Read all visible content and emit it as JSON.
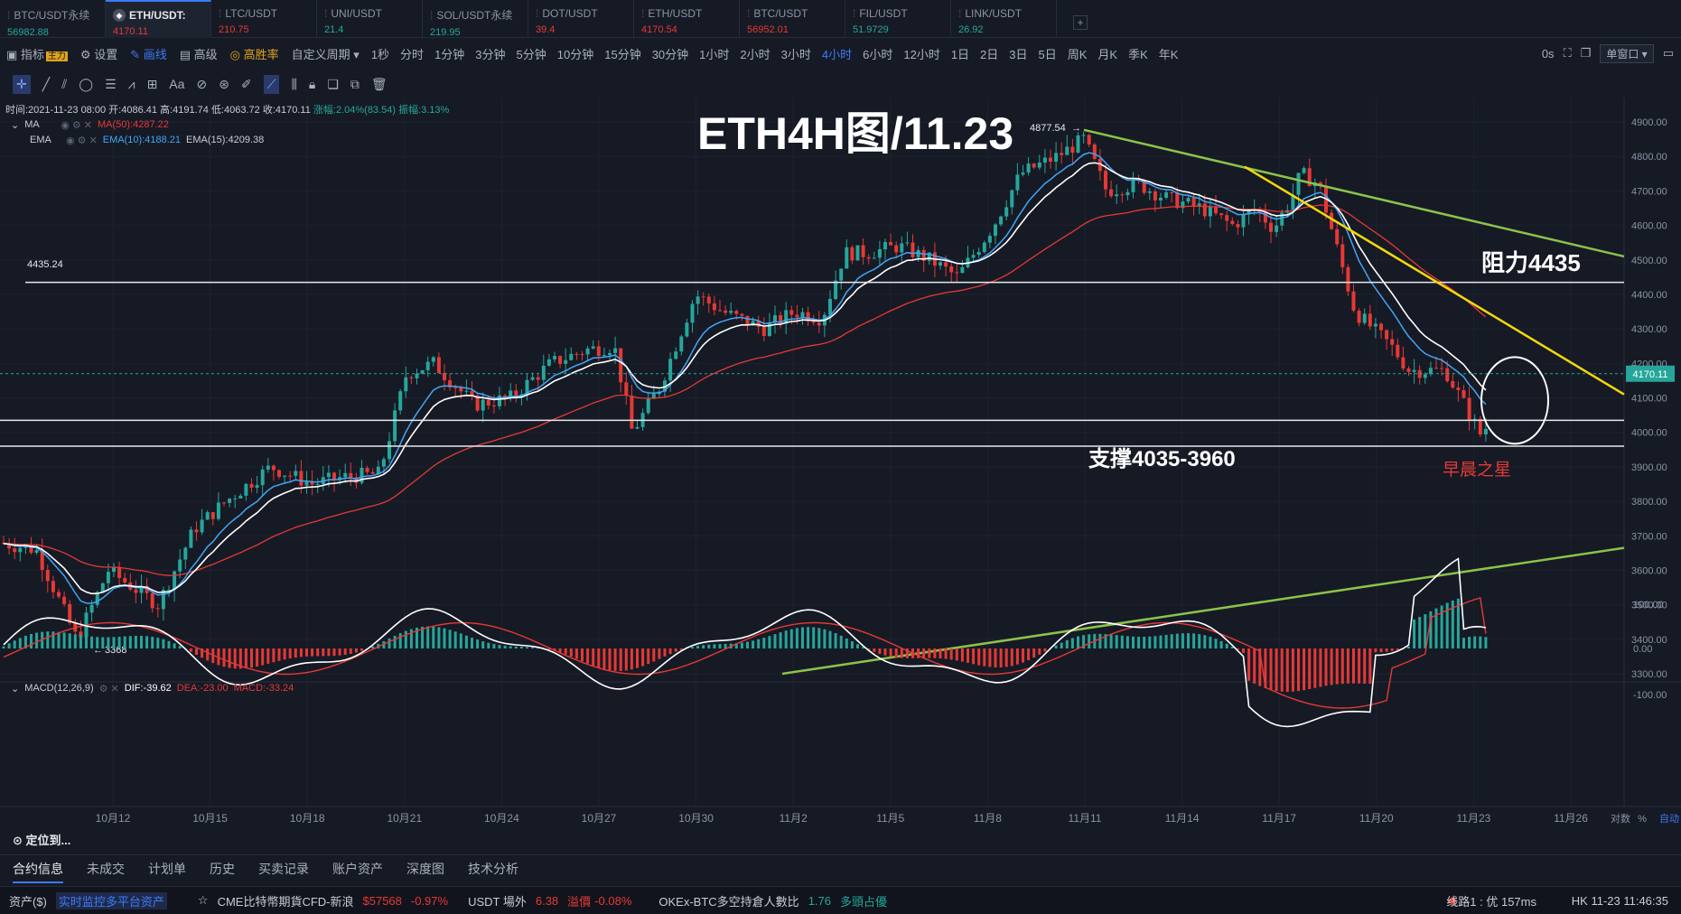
{
  "tabs": [
    {
      "name": "BTC/USDT永续",
      "price": "56982.88",
      "color": "#26a69a"
    },
    {
      "name": "ETH/USDT:",
      "price": "4170.11",
      "color": "#e53935",
      "active": true
    },
    {
      "name": "LTC/USDT",
      "price": "210.75",
      "color": "#e53935"
    },
    {
      "name": "UNI/USDT",
      "price": "21.4",
      "color": "#26a69a"
    },
    {
      "name": "SOL/USDT永续",
      "price": "219.95",
      "color": "#26a69a"
    },
    {
      "name": "DOT/USDT",
      "price": "39.4",
      "color": "#e53935"
    },
    {
      "name": "ETH/USDT",
      "price": "4170.54",
      "color": "#e53935"
    },
    {
      "name": "BTC/USDT",
      "price": "56952.01",
      "color": "#e53935"
    },
    {
      "name": "FIL/USDT",
      "price": "51.9729",
      "color": "#26a69a"
    },
    {
      "name": "LINK/USDT",
      "price": "26.92",
      "color": "#26a69a"
    }
  ],
  "toolbar": {
    "indicator": "指标",
    "main_tag": "主力",
    "settings": "设置",
    "draw": "画线",
    "advanced": "高级",
    "win_rate": "高胜率",
    "custom_period": "自定义周期",
    "periods": [
      "1秒",
      "分时",
      "1分钟",
      "3分钟",
      "5分钟",
      "10分钟",
      "15分钟",
      "30分钟",
      "1小时",
      "2小时",
      "3小时",
      "4小时",
      "6小时",
      "12小时",
      "1日",
      "2日",
      "3日",
      "5日",
      "周K",
      "月K",
      "季K",
      "年K"
    ],
    "active_period": "4小时",
    "latency": "0s",
    "window_mode": "单窗口"
  },
  "info_line": {
    "time": "时间:2021-11-23 08:00",
    "open": "开:4086.41",
    "high": "高:4191.74",
    "low": "低:4063.72",
    "close": "收:4170.11",
    "change": "涨幅:2.04%(83.54)",
    "amp": "振幅:3.13%"
  },
  "indicators": {
    "ma_name": "MA",
    "ma50": "MA(50):4287.22",
    "ema_name": "EMA",
    "ema10": "EMA(10):4188.21",
    "ema15": "EMA(15):4209.38",
    "macd_name": "MACD(12,26,9)",
    "dif": "DIF:-39.62",
    "dea": "DEA:-23.00",
    "macd": "MACD:-33.24"
  },
  "annotations": {
    "title": "ETH4H图/11.23",
    "resistance": "阻力4435",
    "support": "支撑4035-3960",
    "pattern": "早晨之星",
    "level_label": "4435.24",
    "high_label": "4877.54",
    "low_label": "3368",
    "last_price": "4170.11"
  },
  "price_axis": [
    "4900.00",
    "4800.00",
    "4700.00",
    "4600.00",
    "4500.00",
    "4400.00",
    "4300.00",
    "4200.00",
    "4100.00",
    "4000.00",
    "3900.00",
    "3800.00",
    "3700.00",
    "3600.00",
    "3500.00",
    "3400.00",
    "3300.00"
  ],
  "macd_axis": [
    "100.00",
    "0.00",
    "-100.00"
  ],
  "date_axis": [
    "10月12",
    "10月15",
    "10月18",
    "10月21",
    "10月24",
    "10月27",
    "10月30",
    "11月2",
    "11月5",
    "11月8",
    "11月11",
    "11月14",
    "11月17",
    "11月20",
    "11月23",
    "11月26"
  ],
  "axis_extra": {
    "log": "对数",
    "pct": "%",
    "auto": "自动"
  },
  "locate": "定位到...",
  "bottom_tabs": [
    "合约信息",
    "未成交",
    "计划单",
    "历史",
    "买卖记录",
    "账户资产",
    "深度图",
    "技术分析"
  ],
  "ticker": {
    "assets": "资产($)",
    "monitor": "实时监控多平台资产",
    "cme": "CME比特幣期貨CFD-新浪",
    "cme_price": "$57568",
    "cme_chg": "-0.97%",
    "usdt": "USDT 場外",
    "usdt_val": "6.38",
    "premium": "溢價",
    "premium_val": "-0.08%",
    "okex": "OKEx-BTC多空持倉人數比",
    "okex_val": "1.76",
    "okex_tag": "多頭占優",
    "line": "线路1 : 优 157ms",
    "clock": "HK 11-23 11:46:35"
  },
  "colors": {
    "up": "#26a69a",
    "down": "#e53935",
    "accent": "#3d7bf7",
    "yellow": "#f5d90a",
    "green_line": "#8bc34a"
  }
}
